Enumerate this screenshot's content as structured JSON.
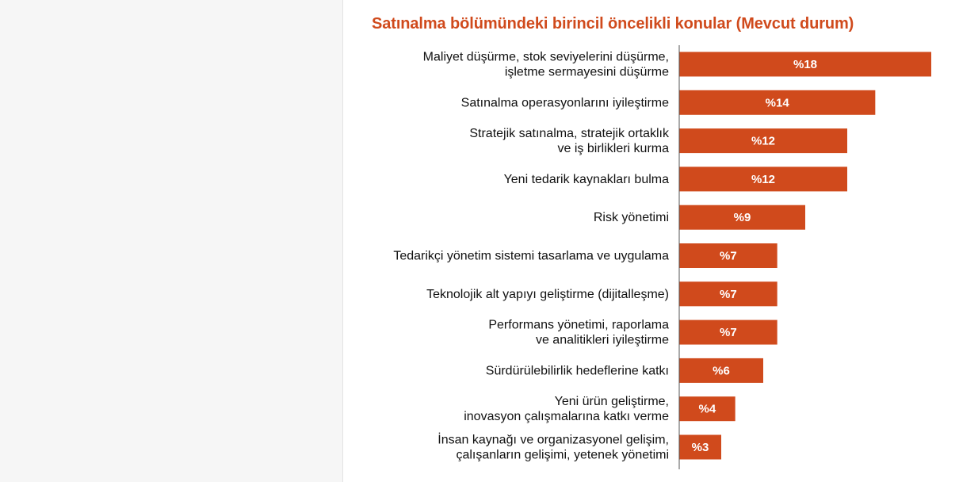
{
  "colors": {
    "title": "#d04a1c",
    "bar": "#d04a1c",
    "axis": "#555555",
    "label": "#111111",
    "bar_label": "#ffffff"
  },
  "chart_data": {
    "type": "bar",
    "orientation": "horizontal",
    "title": "Satınalma bölümündeki birincil öncelikli konular (Mevcut durum)",
    "categories": [
      [
        "Maliyet düşürme, stok seviyelerini düşürme,",
        "işletme sermayesini düşürme"
      ],
      [
        "Satınalma operasyonlarını iyileştirme"
      ],
      [
        "Stratejik satınalma, stratejik ortaklık",
        "ve iş birlikleri kurma"
      ],
      [
        "Yeni tedarik kaynakları bulma"
      ],
      [
        "Risk yönetimi"
      ],
      [
        "Tedarikçi yönetim sistemi tasarlama ve uygulama"
      ],
      [
        "Teknolojik alt yapıyı geliştirme (dijitalleşme)"
      ],
      [
        "Performans yönetimi, raporlama",
        "ve analitikleri iyileştirme"
      ],
      [
        "Sürdürülebilirlik hedeflerine katkı"
      ],
      [
        "Yeni ürün geliştirme,",
        "inovasyon çalışmalarına katkı verme"
      ],
      [
        "İnsan kaynağı ve organizasyonel gelişim,",
        "çalışanların gelişimi, yetenek yönetimi"
      ]
    ],
    "values": [
      18,
      14,
      12,
      12,
      9,
      7,
      7,
      7,
      6,
      4,
      3
    ],
    "value_labels": [
      "%18",
      "%14",
      "%12",
      "%12",
      "%9",
      "%7",
      "%7",
      "%7",
      "%6",
      "%4",
      "%3"
    ],
    "xlim": [
      0,
      18
    ],
    "grid": false,
    "legend": "none"
  }
}
